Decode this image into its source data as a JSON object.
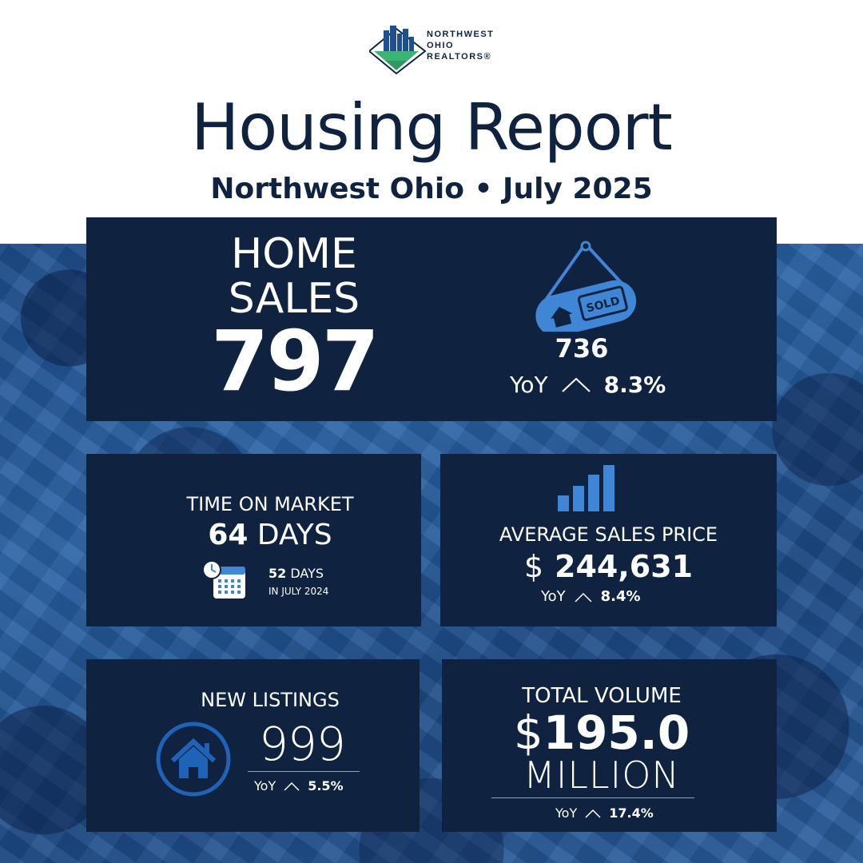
{
  "brand": {
    "logo_text": [
      "NORTHWEST",
      "OHIO",
      "REALTORS®"
    ]
  },
  "header": {
    "title": "Housing Report",
    "subtitle": "Northwest Ohio • July 2025"
  },
  "home_sales": {
    "label_line1": "HOME",
    "label_line2": "SALES",
    "value": "797",
    "prior_value": "736",
    "yoy_label": "YoY",
    "yoy_pct": "8.3%",
    "icon": "sold-sign-icon"
  },
  "time_on_market": {
    "label": "TIME ON MARKET",
    "value": "64",
    "unit": "DAYS",
    "prior_value": "52",
    "prior_unit": "DAYS",
    "prior_note": "IN JULY 2024",
    "icon": "calendar-clock-icon"
  },
  "average_sales_price": {
    "label": "AVERAGE SALES PRICE",
    "currency": "$",
    "value": "244,631",
    "yoy_label": "YoY",
    "yoy_pct": "8.4%",
    "icon": "bar-chart-icon"
  },
  "new_listings": {
    "label": "NEW LISTINGS",
    "value": "999",
    "yoy_label": "YoY",
    "yoy_pct": "5.5%",
    "icon": "house-icon"
  },
  "total_volume": {
    "label": "TOTAL VOLUME",
    "currency": "$",
    "value": "195.0",
    "unit": "MILLION",
    "yoy_label": "YoY",
    "yoy_pct": "17.4%"
  },
  "colors": {
    "navy": "#0f2340",
    "accent_blue": "#3f86d6",
    "background_blue": "#2a64a8",
    "white": "#ffffff"
  }
}
